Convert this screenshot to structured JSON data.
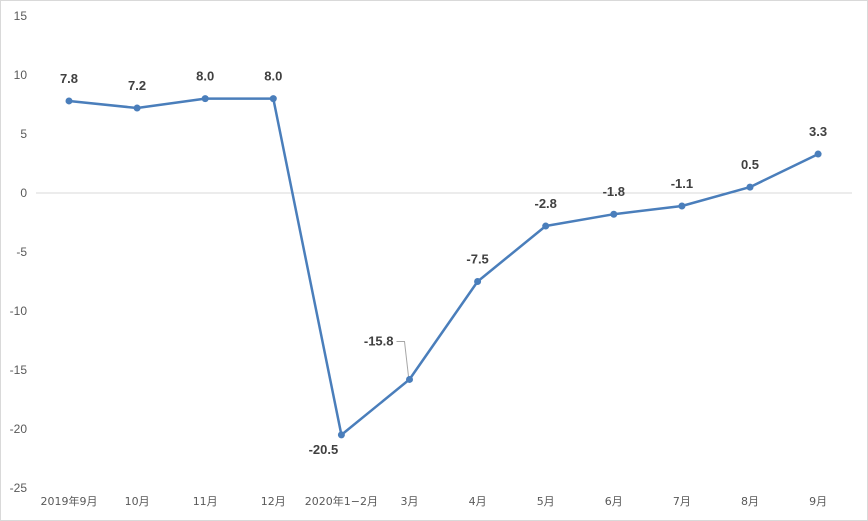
{
  "chart_data": {
    "type": "line",
    "title": "",
    "xlabel": "",
    "ylabel": "",
    "ylim": [
      -25,
      15
    ],
    "yticks": [
      15,
      10,
      5,
      0,
      -5,
      -10,
      -15,
      -20,
      -25
    ],
    "grid": false,
    "legend": "none",
    "categories": [
      "2019年9月",
      "10月",
      "11月",
      "12月",
      "2020年1−2月",
      "3月",
      "4月",
      "5月",
      "6月",
      "7月",
      "8月",
      "9月"
    ],
    "series": [
      {
        "name": "",
        "color": "#4a7ebb",
        "values": [
          7.8,
          7.2,
          8.0,
          8.0,
          -20.5,
          -15.8,
          -7.5,
          -2.8,
          -1.8,
          -1.1,
          0.5,
          3.3
        ],
        "labels": [
          "7.8",
          "7.2",
          "8.0",
          "8.0",
          "-20.5",
          "-15.8",
          "-7.5",
          "-2.8",
          "-1.8",
          "-1.1",
          "0.5",
          "3.3"
        ]
      }
    ]
  }
}
